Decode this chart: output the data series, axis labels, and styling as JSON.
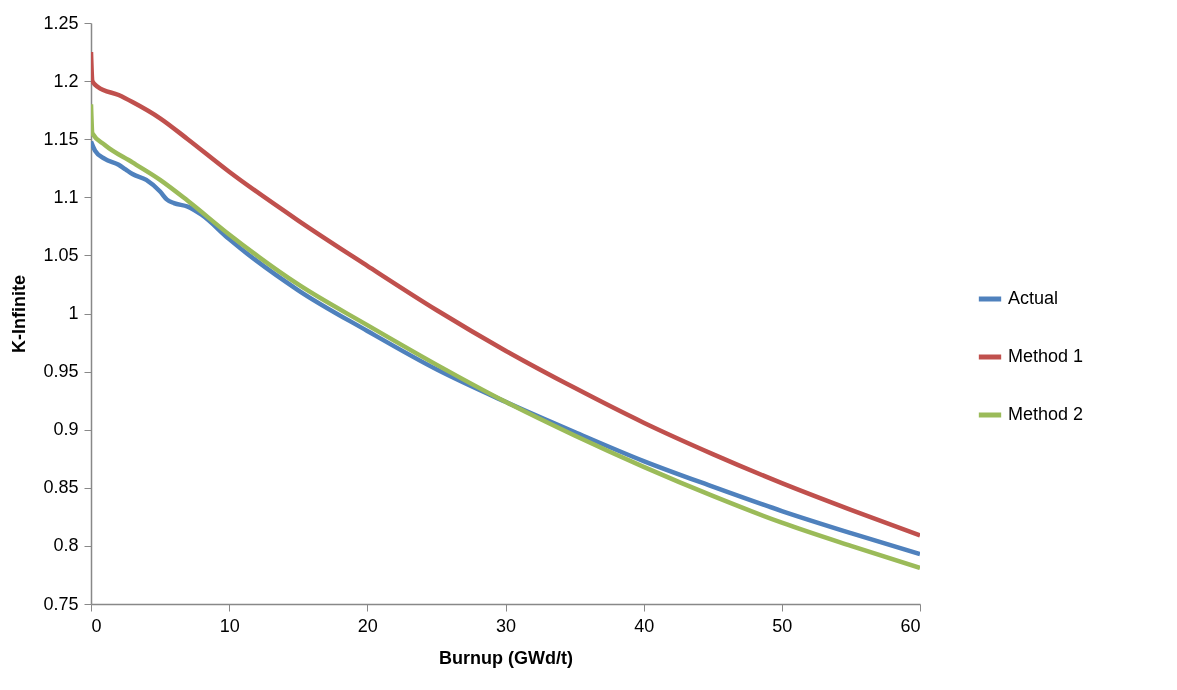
{
  "chart_data": {
    "type": "line",
    "xlabel": "Burnup (GWd/t)",
    "ylabel": "K-Infinite",
    "xlim": [
      0,
      60
    ],
    "xticks": [
      0,
      10,
      20,
      30,
      40,
      50,
      60
    ],
    "ylim": [
      0.75,
      1.25
    ],
    "yticks": [
      0.75,
      0.8,
      0.85,
      0.9,
      0.95,
      1,
      1.05,
      1.1,
      1.15,
      1.2,
      1.25
    ],
    "grid": false,
    "legend": "right",
    "marker": "none",
    "line_style": "solid",
    "series": [
      {
        "name": "Actual",
        "color": "#4f81bd",
        "x": [
          0,
          0.3,
          1,
          2,
          2.5,
          3,
          4,
          5,
          5.5,
          6,
          7,
          8,
          10,
          15,
          20,
          25,
          30,
          35,
          40,
          45,
          50,
          55,
          60
        ],
        "values": [
          1.148,
          1.14,
          1.133,
          1.128,
          1.124,
          1.12,
          1.115,
          1.105,
          1.098,
          1.095,
          1.092,
          1.085,
          1.064,
          1.02,
          0.985,
          0.952,
          0.924,
          0.898,
          0.873,
          0.851,
          0.83,
          0.811,
          0.793
        ]
      },
      {
        "name": "Method 1",
        "color": "#c0504d",
        "x": [
          0,
          0.1,
          0.5,
          2,
          3,
          5,
          7,
          10,
          15,
          20,
          25,
          30,
          35,
          40,
          45,
          50,
          55,
          60
        ],
        "values": [
          1.225,
          1.2,
          1.195,
          1.188,
          1.182,
          1.168,
          1.15,
          1.122,
          1.08,
          1.041,
          1.003,
          0.968,
          0.936,
          0.906,
          0.879,
          0.854,
          0.831,
          0.809
        ]
      },
      {
        "name": "Method 2",
        "color": "#9bbb59",
        "x": [
          0,
          0.1,
          1,
          3,
          5,
          7,
          10,
          15,
          20,
          25,
          30,
          35,
          40,
          45,
          50,
          55,
          60
        ],
        "values": [
          1.18,
          1.155,
          1.145,
          1.13,
          1.115,
          1.097,
          1.068,
          1.025,
          0.99,
          0.956,
          0.924,
          0.895,
          0.868,
          0.843,
          0.82,
          0.8,
          0.781
        ]
      }
    ]
  }
}
